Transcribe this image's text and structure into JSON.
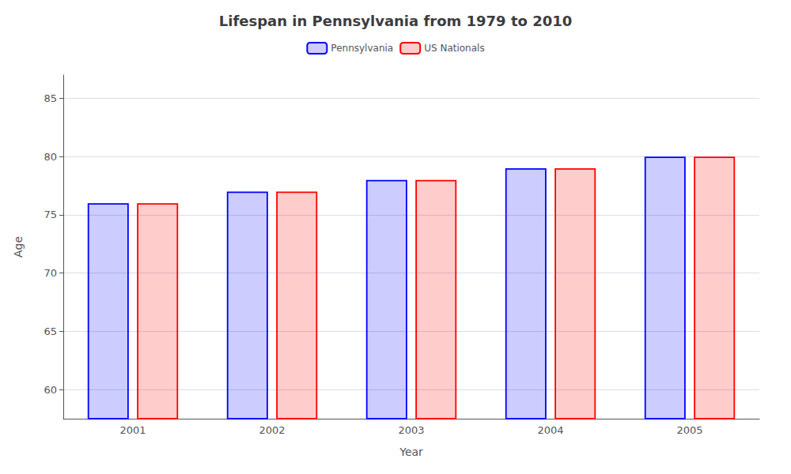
{
  "chart_data": {
    "type": "bar",
    "title": "Lifespan in Pennsylvania from 1979 to 2010",
    "xlabel": "Year",
    "ylabel": "Age",
    "categories": [
      "2001",
      "2002",
      "2003",
      "2004",
      "2005"
    ],
    "series": [
      {
        "name": "Pennsylvania",
        "color": "#0000ff",
        "values": [
          76,
          77,
          78,
          79,
          80
        ]
      },
      {
        "name": "US Nationals",
        "color": "#ff0000",
        "values": [
          76,
          77,
          78,
          79,
          80
        ]
      }
    ],
    "ylim": [
      57.5,
      87
    ],
    "yticks": [
      60,
      65,
      70,
      75,
      80,
      85
    ],
    "grid": true,
    "legend": "top"
  }
}
